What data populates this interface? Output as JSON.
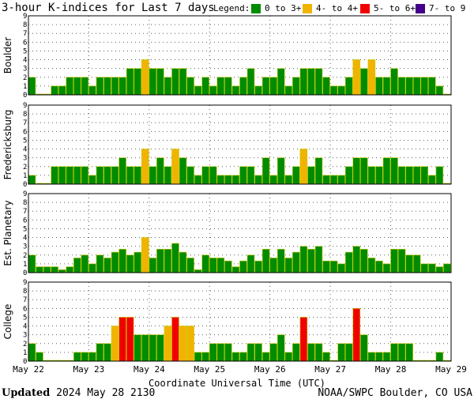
{
  "colors": {
    "quiet": "#008c00",
    "active": "#f0b400",
    "storm": "#f00000",
    "severe": "#440088",
    "bar_outline": "#c8c800",
    "grid": "#606060",
    "frame": "#000000"
  },
  "chart_data": {
    "type": "bar",
    "title": "3-hour K-indices for Last 7 days",
    "legend": {
      "label": "Legend:",
      "position": "top",
      "items": [
        {
          "label": "0 to 3+",
          "color": "#008c00"
        },
        {
          "label": "4- to 4+",
          "color": "#f0b400"
        },
        {
          "label": "5- to 6+",
          "color": "#f00000"
        },
        {
          "label": "7- to 9",
          "color": "#440088"
        }
      ]
    },
    "ylim": [
      0,
      9
    ],
    "yticks": [
      "0",
      "1",
      "2",
      "3",
      "4",
      "5",
      "6",
      "7",
      "8",
      "9"
    ],
    "xlabel": "Coordinate Universal Time (UTC)",
    "x_tick_labels": [
      "May 22",
      "May 23",
      "May 24",
      "May 25",
      "May 26",
      "May 27",
      "May 28",
      "May 29"
    ],
    "interval_hours": 3,
    "grid": true,
    "series": [
      {
        "name": "Boulder",
        "values": [
          2,
          0,
          0,
          1,
          1,
          2,
          2,
          2,
          1,
          2,
          2,
          2,
          2,
          3,
          3,
          4,
          3,
          3,
          2,
          3,
          3,
          2,
          1,
          2,
          1,
          2,
          2,
          1,
          2,
          3,
          1,
          2,
          2,
          3,
          1,
          2,
          3,
          3,
          3,
          2,
          1,
          1,
          2,
          4,
          3,
          4,
          2,
          2,
          3,
          2,
          2,
          2,
          2,
          2,
          1,
          0
        ]
      },
      {
        "name": "Fredericksburg",
        "values": [
          1,
          0,
          0,
          2,
          2,
          2,
          2,
          2,
          1,
          2,
          2,
          2,
          3,
          2,
          2,
          4,
          2,
          3,
          2,
          4,
          3,
          2,
          1,
          2,
          2,
          1,
          1,
          1,
          2,
          2,
          1,
          3,
          1,
          3,
          1,
          2,
          4,
          2,
          3,
          1,
          1,
          1,
          2,
          3,
          3,
          2,
          2,
          3,
          3,
          2,
          2,
          2,
          2,
          1,
          2,
          0
        ]
      },
      {
        "name": "Est. Planetary",
        "values": [
          2,
          0.67,
          0.67,
          0.67,
          0.33,
          0.67,
          1.67,
          2,
          1,
          2,
          1.67,
          2.33,
          2.67,
          2,
          2.33,
          4,
          1.67,
          2.67,
          2.67,
          3.33,
          2.33,
          1.67,
          0.33,
          2,
          1.67,
          1.67,
          1.33,
          0.67,
          1.33,
          2,
          1.33,
          2.67,
          1.67,
          2.67,
          1.67,
          2.33,
          3,
          2.67,
          3,
          1.33,
          1.33,
          1,
          2.33,
          3,
          2.67,
          1.67,
          1.33,
          1,
          2.67,
          2.67,
          2,
          2,
          1,
          1,
          0.67,
          1
        ]
      },
      {
        "name": "College",
        "values": [
          2,
          1,
          0,
          0,
          0,
          0,
          1,
          1,
          1,
          2,
          2,
          4,
          5,
          5,
          3,
          3,
          3,
          3,
          4,
          5,
          4,
          4,
          1,
          1,
          2,
          2,
          2,
          1,
          1,
          2,
          2,
          1,
          2,
          3,
          1,
          2,
          5,
          2,
          2,
          1,
          0,
          2,
          2,
          6,
          3,
          1,
          1,
          1,
          2,
          2,
          2,
          0,
          0,
          0,
          1,
          0
        ]
      }
    ]
  },
  "footer": {
    "updated_label": "Updated",
    "updated_value": "2024 May 28 2130",
    "source": "NOAA/SWPC Boulder, CO USA"
  }
}
